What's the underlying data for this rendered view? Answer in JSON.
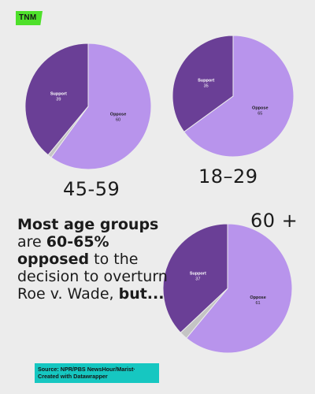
{
  "brand": {
    "logo_text": "TNM",
    "logo_color": "#4ee02a"
  },
  "headline": {
    "part1": "Most age groups",
    "part2": " are ",
    "part3": "60-65% opposed",
    "part4": " to the decision to overturn Roe v. Wade, ",
    "part5": "but..."
  },
  "source": {
    "line1": "Source: NPR/PBS NewsHour/Marist·",
    "line2": "Created with Datawrapper"
  },
  "colors": {
    "support": "#6a3f96",
    "oppose": "#b894ec",
    "other": "#c4c4c4"
  },
  "chart_data": [
    {
      "type": "pie",
      "title": "45-59",
      "slices": [
        {
          "label": "Oppose",
          "value": 60
        },
        {
          "label": "Other",
          "value": 1
        },
        {
          "label": "Support",
          "value": 39
        }
      ]
    },
    {
      "type": "pie",
      "title": "18–29",
      "slices": [
        {
          "label": "Oppose",
          "value": 65
        },
        {
          "label": "Other",
          "value": 0
        },
        {
          "label": "Support",
          "value": 35
        }
      ]
    },
    {
      "type": "pie",
      "title": "60 +",
      "slices": [
        {
          "label": "Oppose",
          "value": 61
        },
        {
          "label": "Other",
          "value": 2
        },
        {
          "label": "Support",
          "value": 37
        }
      ]
    }
  ]
}
